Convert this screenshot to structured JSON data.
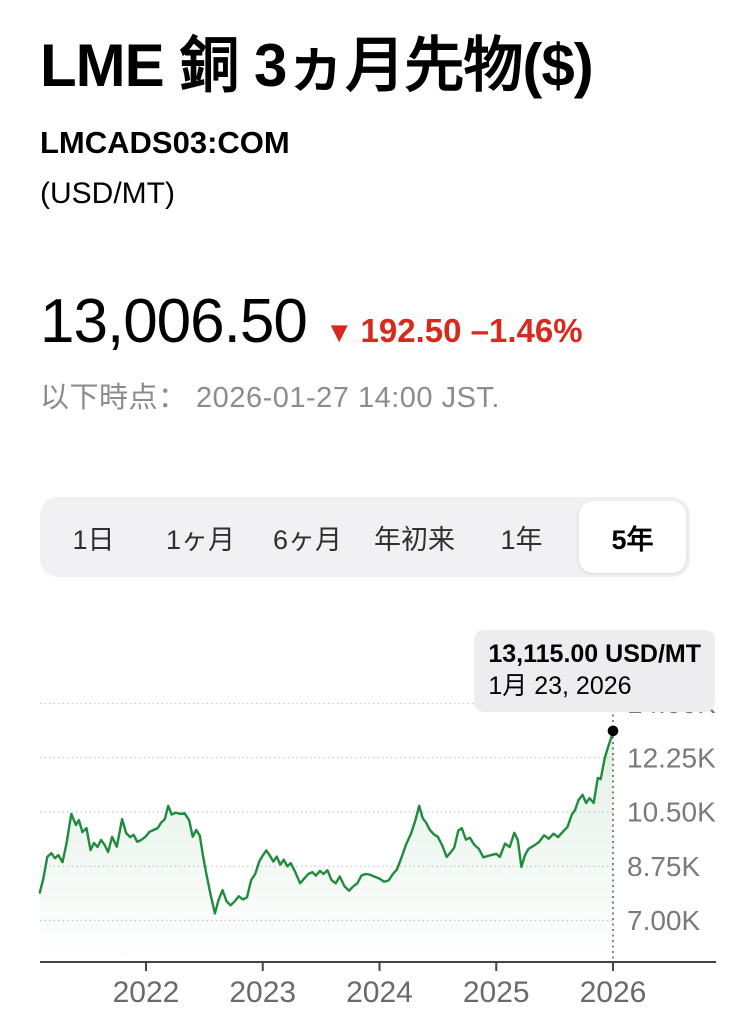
{
  "header": {
    "title": "LME 銅 3ヵ月先物($)",
    "symbol": "LMCADS03:COM",
    "unit": "(USD/MT)"
  },
  "quote": {
    "price": "13,006.50",
    "direction_icon": "▼",
    "change_text": "192.50 –1.46%",
    "as_of": "以下時点： 2026-01-27 14:00 JST."
  },
  "range_tabs": {
    "items": [
      {
        "label": "1日",
        "selected": false
      },
      {
        "label": "1ヶ月",
        "selected": false
      },
      {
        "label": "6ヶ月",
        "selected": false
      },
      {
        "label": "年初来",
        "selected": false
      },
      {
        "label": "1年",
        "selected": false
      },
      {
        "label": "5年",
        "selected": true
      }
    ]
  },
  "tooltip": {
    "value_line": "13,115.00 USD/MT",
    "date_line": "1月 23, 2026"
  },
  "colors": {
    "line_green": "#1e8c3c",
    "negative_red": "#d9291c",
    "gridline_gray": "#cbcbcb",
    "axis_dark": "#454545",
    "label_gray": "#7a7a7a",
    "x_label_gray": "#6a6a6a",
    "cursor_gray": "#4f4f4f"
  },
  "chart_data": {
    "type": "line",
    "series_name": "LMCADS03:COM 3-month copper price",
    "unit": "USD/MT",
    "y_axis": {
      "ticks": [
        {
          "label": "14.00K",
          "value": 14000
        },
        {
          "label": "12.25K",
          "value": 12250
        },
        {
          "label": "10.50K",
          "value": 10500
        },
        {
          "label": "8.75K",
          "value": 8750
        },
        {
          "label": "7.00K",
          "value": 7000
        }
      ]
    },
    "x_axis": {
      "ticks": [
        {
          "label": "2022",
          "t": 2022
        },
        {
          "label": "2023",
          "t": 2023
        },
        {
          "label": "2024",
          "t": 2024
        },
        {
          "label": "2025",
          "t": 2025
        },
        {
          "label": "2026",
          "t": 2026
        }
      ]
    },
    "last_point": {
      "t": 2026.0,
      "value": 13115,
      "date_label": "1月 23, 2026"
    },
    "points": [
      [
        2021.09,
        7900
      ],
      [
        2021.12,
        8350
      ],
      [
        2021.155,
        9050
      ],
      [
        2021.19,
        9170
      ],
      [
        2021.22,
        9010
      ],
      [
        2021.25,
        9110
      ],
      [
        2021.285,
        8880
      ],
      [
        2021.32,
        9500
      ],
      [
        2021.36,
        10440
      ],
      [
        2021.4,
        10080
      ],
      [
        2021.425,
        10240
      ],
      [
        2021.455,
        9850
      ],
      [
        2021.49,
        9980
      ],
      [
        2021.525,
        9270
      ],
      [
        2021.555,
        9500
      ],
      [
        2021.585,
        9370
      ],
      [
        2021.615,
        9600
      ],
      [
        2021.645,
        9440
      ],
      [
        2021.675,
        9210
      ],
      [
        2021.71,
        9700
      ],
      [
        2021.75,
        9380
      ],
      [
        2021.795,
        10270
      ],
      [
        2021.83,
        9820
      ],
      [
        2021.865,
        9690
      ],
      [
        2021.895,
        9760
      ],
      [
        2021.925,
        9540
      ],
      [
        2021.96,
        9600
      ],
      [
        2022.0,
        9720
      ],
      [
        2022.03,
        9860
      ],
      [
        2022.065,
        9920
      ],
      [
        2022.1,
        9980
      ],
      [
        2022.13,
        10160
      ],
      [
        2022.16,
        10260
      ],
      [
        2022.19,
        10700
      ],
      [
        2022.22,
        10420
      ],
      [
        2022.255,
        10480
      ],
      [
        2022.29,
        10440
      ],
      [
        2022.33,
        10460
      ],
      [
        2022.37,
        10230
      ],
      [
        2022.4,
        9700
      ],
      [
        2022.43,
        9920
      ],
      [
        2022.46,
        9750
      ],
      [
        2022.49,
        9050
      ],
      [
        2022.52,
        8450
      ],
      [
        2022.555,
        7800
      ],
      [
        2022.59,
        7230
      ],
      [
        2022.62,
        7650
      ],
      [
        2022.655,
        7980
      ],
      [
        2022.69,
        7620
      ],
      [
        2022.725,
        7490
      ],
      [
        2022.76,
        7620
      ],
      [
        2022.795,
        7780
      ],
      [
        2022.83,
        7680
      ],
      [
        2022.865,
        7750
      ],
      [
        2022.9,
        8300
      ],
      [
        2022.935,
        8500
      ],
      [
        2022.97,
        8900
      ],
      [
        2023.0,
        9100
      ],
      [
        2023.03,
        9260
      ],
      [
        2023.06,
        9100
      ],
      [
        2023.09,
        8900
      ],
      [
        2023.12,
        9060
      ],
      [
        2023.15,
        8800
      ],
      [
        2023.18,
        8960
      ],
      [
        2023.21,
        8750
      ],
      [
        2023.24,
        8850
      ],
      [
        2023.28,
        8550
      ],
      [
        2023.32,
        8200
      ],
      [
        2023.355,
        8350
      ],
      [
        2023.39,
        8500
      ],
      [
        2023.425,
        8560
      ],
      [
        2023.455,
        8450
      ],
      [
        2023.49,
        8600
      ],
      [
        2023.52,
        8500
      ],
      [
        2023.555,
        8620
      ],
      [
        2023.59,
        8300
      ],
      [
        2023.625,
        8200
      ],
      [
        2023.66,
        8420
      ],
      [
        2023.7,
        8100
      ],
      [
        2023.74,
        7960
      ],
      [
        2023.775,
        8100
      ],
      [
        2023.81,
        8200
      ],
      [
        2023.845,
        8450
      ],
      [
        2023.88,
        8500
      ],
      [
        2023.915,
        8480
      ],
      [
        2023.955,
        8420
      ],
      [
        2024.0,
        8350
      ],
      [
        2024.04,
        8250
      ],
      [
        2024.08,
        8300
      ],
      [
        2024.115,
        8500
      ],
      [
        2024.15,
        8650
      ],
      [
        2024.19,
        9050
      ],
      [
        2024.23,
        9480
      ],
      [
        2024.27,
        9800
      ],
      [
        2024.305,
        10200
      ],
      [
        2024.34,
        10700
      ],
      [
        2024.37,
        10300
      ],
      [
        2024.4,
        10150
      ],
      [
        2024.43,
        9930
      ],
      [
        2024.465,
        9780
      ],
      [
        2024.5,
        9700
      ],
      [
        2024.54,
        9400
      ],
      [
        2024.575,
        9050
      ],
      [
        2024.61,
        9200
      ],
      [
        2024.64,
        9350
      ],
      [
        2024.675,
        9900
      ],
      [
        2024.705,
        9980
      ],
      [
        2024.74,
        9610
      ],
      [
        2024.775,
        9670
      ],
      [
        2024.81,
        9450
      ],
      [
        2024.85,
        9320
      ],
      [
        2024.89,
        9040
      ],
      [
        2024.945,
        9100
      ],
      [
        2025.0,
        9150
      ],
      [
        2025.03,
        9050
      ],
      [
        2025.075,
        9480
      ],
      [
        2025.115,
        9370
      ],
      [
        2025.155,
        9830
      ],
      [
        2025.185,
        9600
      ],
      [
        2025.215,
        8730
      ],
      [
        2025.245,
        9100
      ],
      [
        2025.275,
        9310
      ],
      [
        2025.32,
        9410
      ],
      [
        2025.365,
        9530
      ],
      [
        2025.41,
        9750
      ],
      [
        2025.45,
        9640
      ],
      [
        2025.49,
        9800
      ],
      [
        2025.53,
        9690
      ],
      [
        2025.57,
        9860
      ],
      [
        2025.61,
        10020
      ],
      [
        2025.645,
        10400
      ],
      [
        2025.675,
        10570
      ],
      [
        2025.705,
        10890
      ],
      [
        2025.74,
        11050
      ],
      [
        2025.77,
        10790
      ],
      [
        2025.8,
        10950
      ],
      [
        2025.835,
        10790
      ],
      [
        2025.87,
        11600
      ],
      [
        2025.895,
        11560
      ],
      [
        2025.93,
        12250
      ],
      [
        2025.96,
        12620
      ],
      [
        2025.985,
        12900
      ],
      [
        2026.0,
        13115
      ]
    ]
  }
}
